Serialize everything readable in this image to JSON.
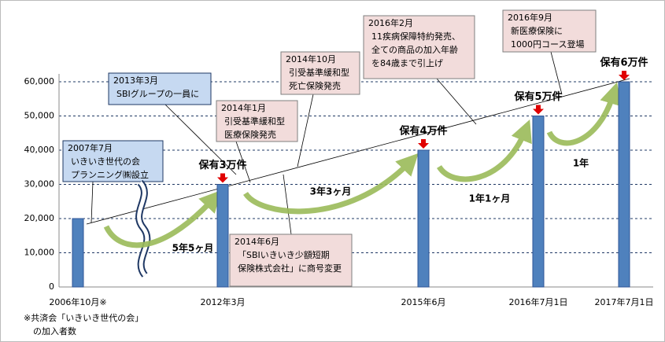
{
  "chart_data": {
    "type": "bar",
    "categories": [
      "2006年10月※",
      "2012年3月",
      "2015年6月",
      "2016年7月1日",
      "2017年7月1日"
    ],
    "values": [
      20000,
      30000,
      40000,
      50000,
      60000
    ],
    "value_labels": [
      null,
      "保有3万件",
      "保有4万件",
      "保有5万件",
      "保有6万件"
    ],
    "color": "#4f81bd",
    "ylim": [
      0,
      60000
    ],
    "yticks": [
      0,
      {
        "value": 10000,
        "label": "10,000"
      },
      {
        "value": 20000,
        "label": "20,000"
      },
      {
        "value": 30000,
        "label": "30,000"
      },
      {
        "value": 40000,
        "label": "40,000"
      },
      {
        "value": 50000,
        "label": "50,000"
      },
      {
        "value": 60000,
        "label": "60,000"
      }
    ],
    "grid": true,
    "annotations": [
      [
        "2007年7月",
        "いきいき世代の会",
        "プランニング㈱設立"
      ],
      [
        "2013年3月",
        "SBIグループの一員に"
      ],
      [
        "2014年1月",
        "引受基準緩和型",
        "医療保険発売"
      ],
      [
        "2014年10月",
        "引受基準緩和型",
        "死亡保険発売"
      ],
      [
        "2016年2月",
        "11疾病保障特約発売、",
        "全ての商品の加入年齢",
        "を84歳まで引上げ"
      ],
      [
        "2016年9月",
        "新医療保険に",
        "1000円コース登場"
      ],
      [
        "2014年6月",
        "「SBIいきいき少額短期",
        "保険株式会社」に商号変更"
      ]
    ],
    "intervals": [
      "5年5ヶ月",
      "3年3ヶ月",
      "1年1ヶ月",
      "1年"
    ],
    "footnote": [
      "※共済会「いきいき世代の会」",
      "の加入者数"
    ]
  }
}
